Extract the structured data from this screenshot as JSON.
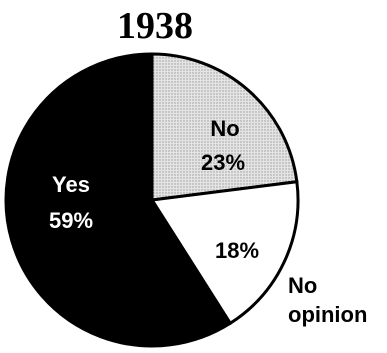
{
  "chart_data": {
    "type": "pie",
    "title": "1938",
    "slices": [
      {
        "name": "No",
        "value": 23,
        "label": "23%",
        "color": "#d6d6d6",
        "text_color": "#000000"
      },
      {
        "name": "No opinion",
        "value": 18,
        "label": "18%",
        "color": "#ffffff",
        "text_color": "#000000"
      },
      {
        "name": "Yes",
        "value": 59,
        "label": "59%",
        "color": "#000000",
        "text_color": "#ffffff"
      }
    ],
    "outside_label": [
      "No",
      "opinion"
    ]
  }
}
